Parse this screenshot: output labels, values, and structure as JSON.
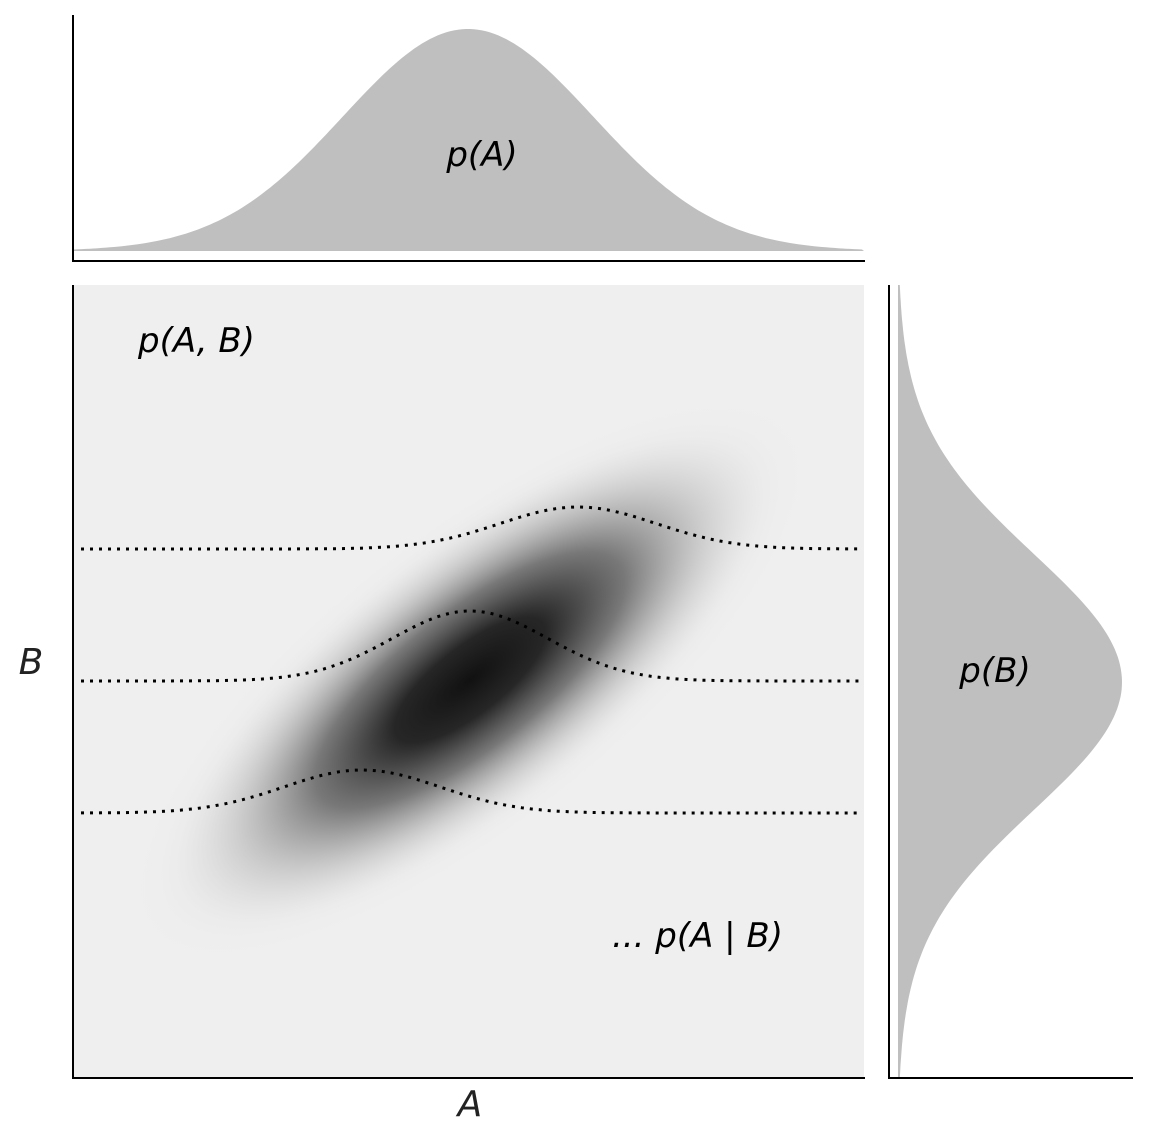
{
  "labels": {
    "marginal_a": "p(A)",
    "joint": "p(A, B)",
    "marginal_b": "p(B)",
    "conditional": "... p(A | B)",
    "axis_a": "A",
    "axis_b": "B"
  },
  "colors": {
    "marginal_fill": "#bfbfbf",
    "joint_background": "#efefef",
    "density_peak": "#111111",
    "axis_line": "#000000",
    "dotted_line": "#000000"
  },
  "joint_distribution": {
    "correlated": true,
    "correlation_direction": "positive"
  },
  "conditional_slices": {
    "count": 3,
    "line_style": "dotted"
  }
}
